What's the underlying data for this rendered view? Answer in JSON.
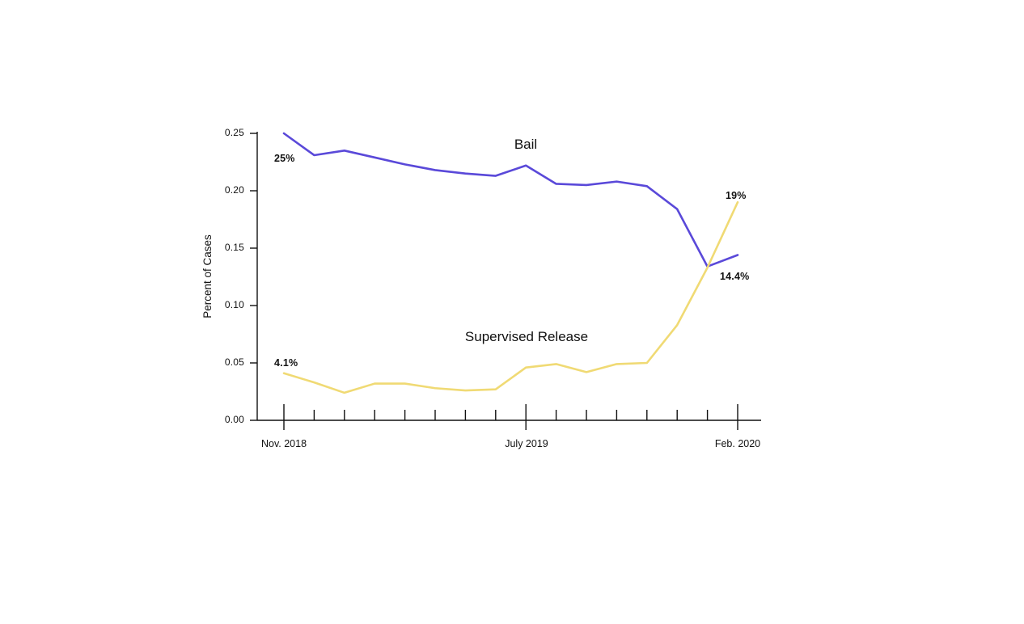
{
  "chart_data": {
    "type": "line",
    "title": "",
    "xlabel": "",
    "ylabel": "Percent of Cases",
    "ylim": [
      0,
      0.25
    ],
    "grid": false,
    "legend_position": "inline-labels",
    "y_ticks": [
      0,
      0.05,
      0.1,
      0.15,
      0.2,
      0.25
    ],
    "y_tick_labels": [
      "0.00",
      "0.05",
      "0.10",
      "0.15",
      "0.20",
      "0.25"
    ],
    "x_tick_labels": [
      {
        "index": 0,
        "label": "Nov. 2018"
      },
      {
        "index": 8,
        "label": "July 2019"
      },
      {
        "index": 15,
        "label": "Feb. 2020"
      }
    ],
    "series": [
      {
        "name": "Bail",
        "color": "#5a49d9",
        "start_label": "25%",
        "end_label": "14.4%",
        "values": [
          0.25,
          0.231,
          0.235,
          0.229,
          0.223,
          0.218,
          0.215,
          0.213,
          0.222,
          0.206,
          0.205,
          0.208,
          0.204,
          0.184,
          0.134,
          0.144
        ]
      },
      {
        "name": "Supervised Release",
        "color": "#f0da74",
        "start_label": "4.1%",
        "end_label": "19%",
        "values": [
          0.041,
          0.033,
          0.024,
          0.032,
          0.032,
          0.028,
          0.026,
          0.027,
          0.046,
          0.049,
          0.042,
          0.049,
          0.05,
          0.083,
          0.133,
          0.19
        ]
      }
    ],
    "axis_color": "#111111",
    "background_color": "#ffffff"
  }
}
